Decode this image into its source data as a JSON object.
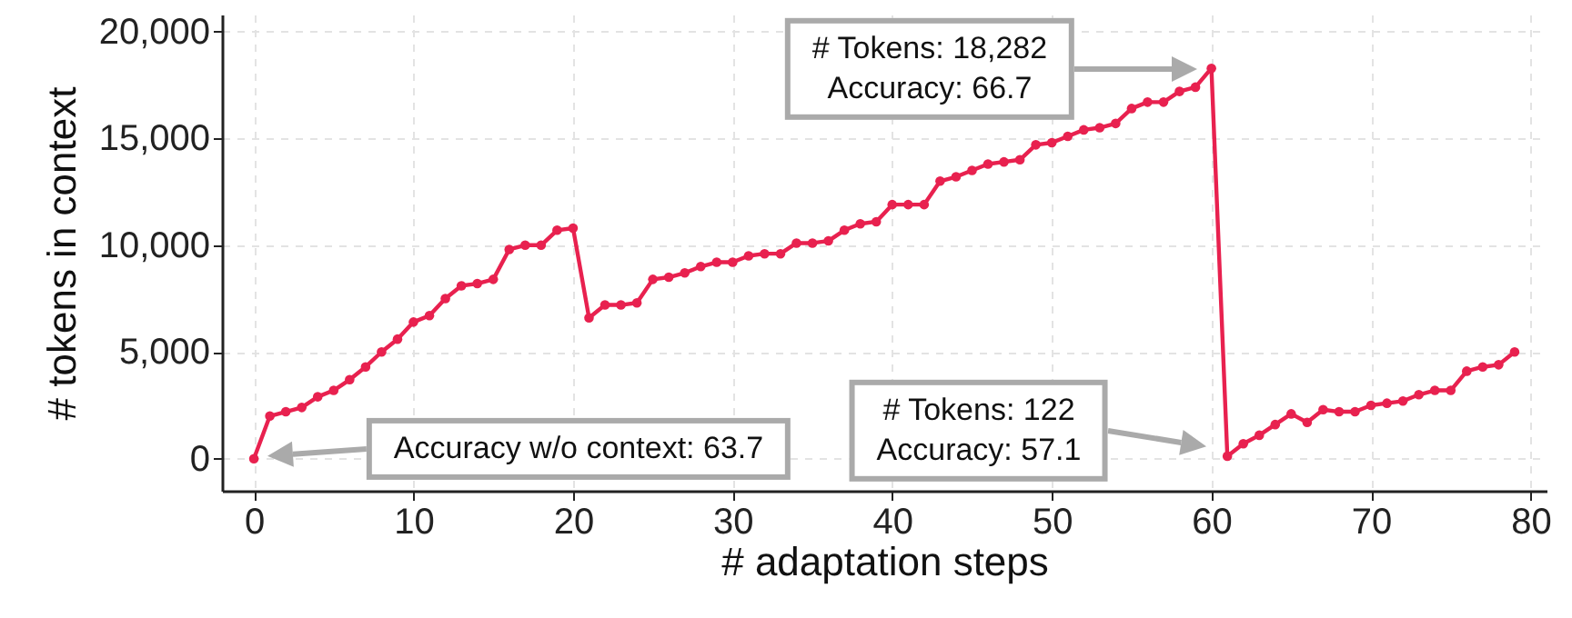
{
  "chart_data": {
    "type": "line",
    "xlabel": "# adaptation steps",
    "ylabel": "# tokens in context",
    "x": [
      0,
      1,
      2,
      3,
      4,
      5,
      6,
      7,
      8,
      9,
      10,
      11,
      12,
      13,
      14,
      15,
      16,
      17,
      18,
      19,
      20,
      21,
      22,
      23,
      24,
      25,
      26,
      27,
      28,
      29,
      30,
      31,
      32,
      33,
      34,
      35,
      36,
      37,
      38,
      39,
      40,
      41,
      42,
      43,
      44,
      45,
      46,
      47,
      48,
      49,
      50,
      51,
      52,
      53,
      54,
      55,
      56,
      57,
      58,
      59,
      60,
      61,
      62,
      63,
      64,
      65,
      66,
      67,
      68,
      69,
      70,
      71,
      72,
      73,
      74,
      75,
      76,
      77,
      78,
      79
    ],
    "series": [
      {
        "color": "#e8214f",
        "values": [
          0,
          2000,
          2200,
          2400,
          2900,
          3200,
          3700,
          4300,
          5000,
          5600,
          6400,
          6700,
          7500,
          8100,
          8200,
          8400,
          9800,
          10000,
          10000,
          10700,
          10800,
          6600,
          7200,
          7200,
          7300,
          8400,
          8500,
          8700,
          9000,
          9200,
          9200,
          9500,
          9600,
          9600,
          10100,
          10100,
          10200,
          10700,
          11000,
          11100,
          11900,
          11900,
          11900,
          13000,
          13200,
          13500,
          13800,
          13900,
          14000,
          14700,
          14800,
          15100,
          15400,
          15500,
          15700,
          16400,
          16700,
          16700,
          17200,
          17400,
          18282,
          122,
          700,
          1100,
          1600,
          2100,
          1700,
          2300,
          2200,
          2200,
          2500,
          2600,
          2700,
          3000,
          3200,
          3200,
          4100,
          4300,
          4400,
          5000
        ]
      }
    ],
    "xlim": [
      -2,
      81
    ],
    "xticks": [
      0,
      10,
      20,
      30,
      40,
      50,
      60,
      70,
      80
    ],
    "ylim": [
      -1500,
      20800
    ],
    "yticks": [
      {
        "value": 0,
        "label": "0"
      },
      {
        "value": 5000,
        "label": "5,000"
      },
      {
        "value": 10000,
        "label": "10,000"
      },
      {
        "value": 15000,
        "label": "15,000"
      },
      {
        "value": 20000,
        "label": "20,000"
      }
    ],
    "grid": true,
    "marker": "circle",
    "line_style": "solid",
    "annotations": [
      "# Tokens: 18,282\nAccuracy: 66.7",
      "# Tokens: 122\nAccuracy: 57.1",
      "Accuracy w/o context: 63.7"
    ]
  }
}
